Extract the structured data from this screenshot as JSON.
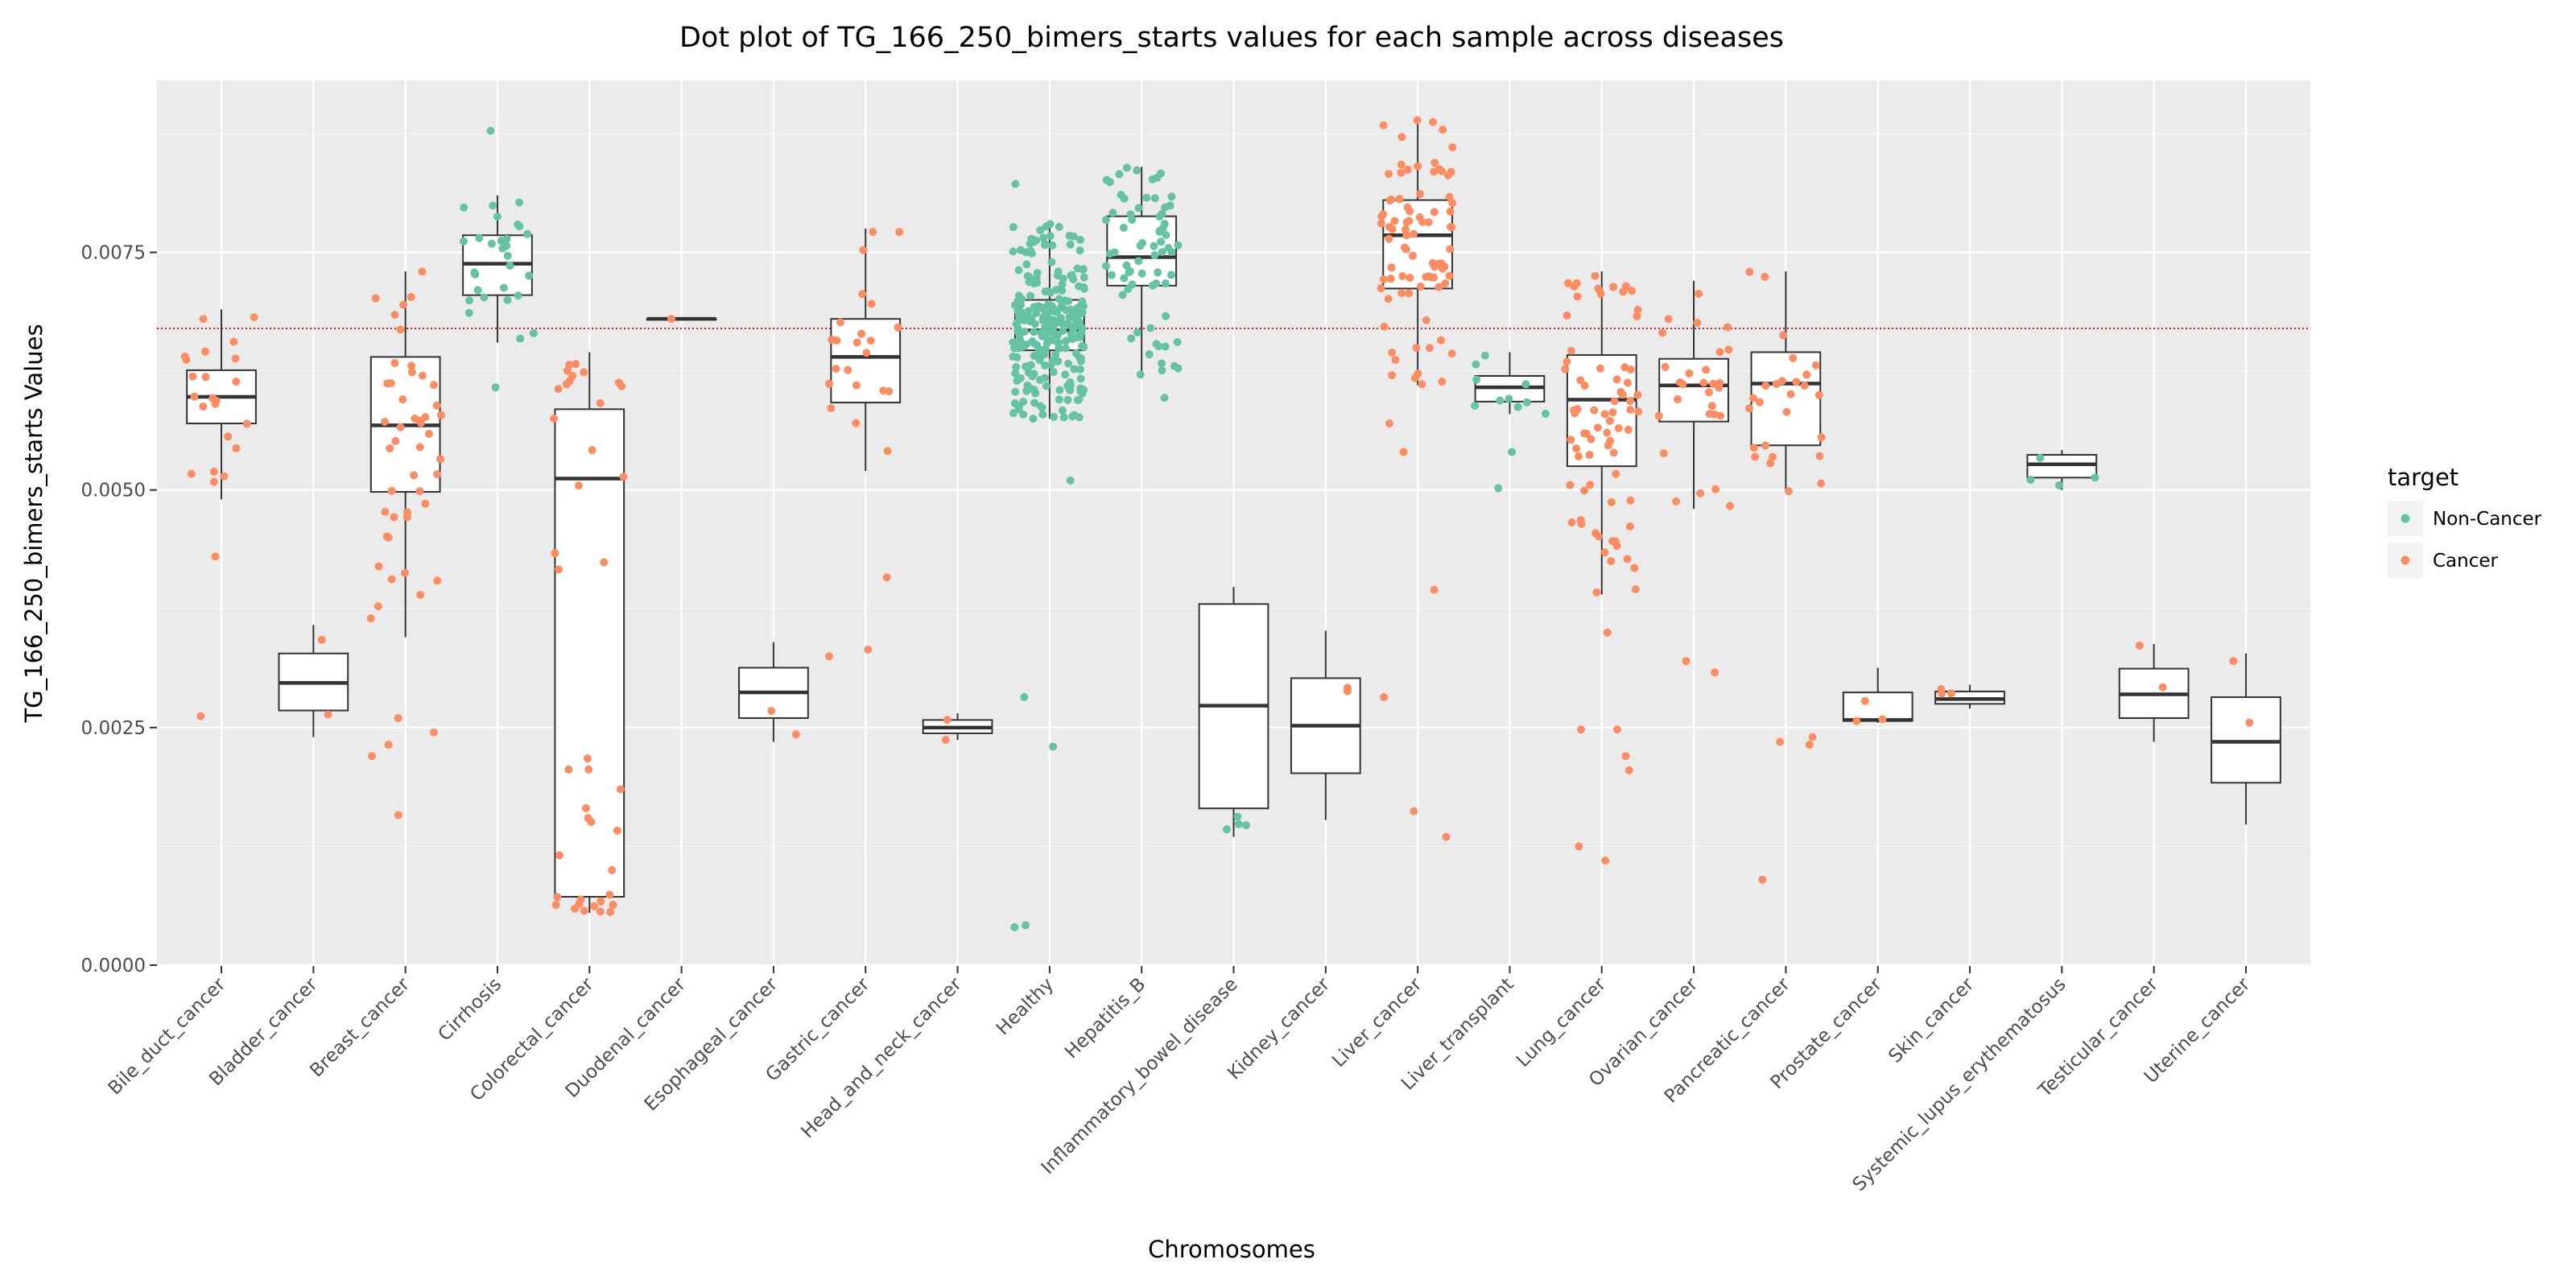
{
  "chart_data": {
    "type": "box",
    "title": "Dot plot of TG_166_250_bimers_starts values for each sample across diseases",
    "xlabel": "Chromosomes",
    "ylabel": "TG_166_250_bimers_starts Values",
    "ylim": [
      0,
      0.0093
    ],
    "yticks": [
      "0.0000",
      "0.0025",
      "0.0050",
      "0.0075"
    ],
    "ytick_values": [
      0,
      0.0025,
      0.005,
      0.0075
    ],
    "reference_line": {
      "y": 0.0067,
      "color": "#e41a1c",
      "style": "dotted"
    },
    "grid": true,
    "legend": {
      "title": "target",
      "position": "right",
      "entries": [
        {
          "label": "Non-Cancer",
          "color": "#66c2a5"
        },
        {
          "label": "Cancer",
          "color": "#fc8d62"
        }
      ]
    },
    "categories": [
      "Bile_duct_cancer",
      "Bladder_cancer",
      "Breast_cancer",
      "Cirrhosis",
      "Colorectal_cancer",
      "Duodenal_cancer",
      "Esophageal_cancer",
      "Gastric_cancer",
      "Head_and_neck_cancer",
      "Healthy",
      "Hepatitis_B",
      "Inflammatory_bowel_disease",
      "Kidney_cancer",
      "Liver_cancer",
      "Liver_transplant",
      "Lung_cancer",
      "Ovarian_cancer",
      "Pancreatic_cancer",
      "Prostate_cancer",
      "Skin_cancer",
      "Systemic_lupus_erythematosus",
      "Testicular_cancer",
      "Uterine_cancer"
    ],
    "boxes": [
      {
        "category": "Bile_duct_cancer",
        "target": "Cancer",
        "whislo": 0.0049,
        "q1": 0.0057,
        "med": 0.00598,
        "q3": 0.00626,
        "whishi": 0.0069,
        "n": 24,
        "outliers": [
          0.0043,
          0.00262
        ]
      },
      {
        "category": "Bladder_cancer",
        "target": "Cancer",
        "whislo": 0.0024,
        "q1": 0.00268,
        "med": 0.00297,
        "q3": 0.00328,
        "whishi": 0.00358,
        "n": 2,
        "outliers": []
      },
      {
        "category": "Breast_cancer",
        "target": "Cancer",
        "whislo": 0.00345,
        "q1": 0.00498,
        "med": 0.00568,
        "q3": 0.0064,
        "whishi": 0.0073,
        "n": 50,
        "outliers": [
          0.0026,
          0.00245,
          0.00232,
          0.0022,
          0.00158
        ]
      },
      {
        "category": "Cirrhosis",
        "target": "Non-Cancer",
        "whislo": 0.00655,
        "q1": 0.00705,
        "med": 0.00738,
        "q3": 0.00768,
        "whishi": 0.0081,
        "n": 30,
        "outliers": [
          0.00878,
          0.00608
        ]
      },
      {
        "category": "Colorectal_cancer",
        "target": "Cancer",
        "whislo": 0.00055,
        "q1": 0.00072,
        "med": 0.00512,
        "q3": 0.00585,
        "whishi": 0.00645,
        "n": 40,
        "outliers": []
      },
      {
        "category": "Duodenal_cancer",
        "target": "Cancer",
        "whislo": 0.0068,
        "q1": 0.0068,
        "med": 0.0068,
        "q3": 0.0068,
        "whishi": 0.0068,
        "n": 1,
        "outliers": []
      },
      {
        "category": "Esophageal_cancer",
        "target": "Cancer",
        "whislo": 0.00235,
        "q1": 0.0026,
        "med": 0.00287,
        "q3": 0.00313,
        "whishi": 0.0034,
        "n": 2,
        "outliers": []
      },
      {
        "category": "Gastric_cancer",
        "target": "Cancer",
        "whislo": 0.0052,
        "q1": 0.00592,
        "med": 0.0064,
        "q3": 0.0068,
        "whishi": 0.00775,
        "n": 25,
        "outliers": [
          0.00408,
          0.00332,
          0.00325
        ]
      },
      {
        "category": "Head_and_neck_cancer",
        "target": "Cancer",
        "whislo": 0.00237,
        "q1": 0.00244,
        "med": 0.0025,
        "q3": 0.00258,
        "whishi": 0.00265,
        "n": 2,
        "outliers": []
      },
      {
        "category": "Healthy",
        "target": "Non-Cancer",
        "whislo": 0.00575,
        "q1": 0.00647,
        "med": 0.00668,
        "q3": 0.007,
        "whishi": 0.0078,
        "n": 250,
        "outliers": [
          0.00822,
          0.0051,
          0.00282,
          0.0023,
          0.00042,
          0.0004
        ]
      },
      {
        "category": "Hepatitis_B",
        "target": "Non-Cancer",
        "whislo": 0.0062,
        "q1": 0.00715,
        "med": 0.00745,
        "q3": 0.00788,
        "whishi": 0.0084,
        "n": 70,
        "outliers": [
          0.00597
        ]
      },
      {
        "category": "Inflammatory_bowel_disease",
        "target": "Non-Cancer",
        "whislo": 0.00135,
        "q1": 0.00165,
        "med": 0.00273,
        "q3": 0.0038,
        "whishi": 0.00398,
        "n": 4,
        "outliers": []
      },
      {
        "category": "Kidney_cancer",
        "target": "Cancer",
        "whislo": 0.00153,
        "q1": 0.00202,
        "med": 0.00252,
        "q3": 0.00302,
        "whishi": 0.00352,
        "n": 2,
        "outliers": []
      },
      {
        "category": "Liver_cancer",
        "target": "Cancer",
        "whislo": 0.0061,
        "q1": 0.00712,
        "med": 0.00768,
        "q3": 0.00805,
        "whishi": 0.0089,
        "n": 90,
        "outliers": [
          0.0057,
          0.0054,
          0.00395,
          0.00282,
          0.00162,
          0.00135
        ]
      },
      {
        "category": "Liver_transplant",
        "target": "Non-Cancer",
        "whislo": 0.0058,
        "q1": 0.00593,
        "med": 0.00608,
        "q3": 0.0062,
        "whishi": 0.00645,
        "n": 12,
        "outliers": [
          0.0054,
          0.00502
        ]
      },
      {
        "category": "Lung_cancer",
        "target": "Cancer",
        "whislo": 0.0039,
        "q1": 0.00525,
        "med": 0.00595,
        "q3": 0.00642,
        "whishi": 0.0073,
        "n": 80,
        "outliers": [
          0.0035,
          0.00248,
          0.00248,
          0.0022,
          0.00205,
          0.00125,
          0.0011
        ]
      },
      {
        "category": "Ovarian_cancer",
        "target": "Cancer",
        "whislo": 0.0048,
        "q1": 0.00572,
        "med": 0.0061,
        "q3": 0.00638,
        "whishi": 0.0072,
        "n": 30,
        "outliers": [
          0.0032,
          0.00308
        ]
      },
      {
        "category": "Pancreatic_cancer",
        "target": "Cancer",
        "whislo": 0.00498,
        "q1": 0.00547,
        "med": 0.00612,
        "q3": 0.00645,
        "whishi": 0.0073,
        "n": 30,
        "outliers": [
          0.0024,
          0.00235,
          0.00232,
          0.0009
        ]
      },
      {
        "category": "Prostate_cancer",
        "target": "Cancer",
        "whislo": 0.00255,
        "q1": 0.00257,
        "med": 0.00258,
        "q3": 0.00287,
        "whishi": 0.00313,
        "n": 3,
        "outliers": []
      },
      {
        "category": "Skin_cancer",
        "target": "Cancer",
        "whislo": 0.0027,
        "q1": 0.00275,
        "med": 0.0028,
        "q3": 0.00288,
        "whishi": 0.00295,
        "n": 3,
        "outliers": []
      },
      {
        "category": "Systemic_lupus_erythematosus",
        "target": "Non-Cancer",
        "whislo": 0.005,
        "q1": 0.00513,
        "med": 0.00527,
        "q3": 0.00537,
        "whishi": 0.00542,
        "n": 4,
        "outliers": []
      },
      {
        "category": "Testicular_cancer",
        "target": "Cancer",
        "whislo": 0.00235,
        "q1": 0.0026,
        "med": 0.00285,
        "q3": 0.00312,
        "whishi": 0.00338,
        "n": 2,
        "outliers": []
      },
      {
        "category": "Uterine_cancer",
        "target": "Cancer",
        "whislo": 0.00148,
        "q1": 0.00192,
        "med": 0.00235,
        "q3": 0.00282,
        "whishi": 0.00328,
        "n": 2,
        "outliers": []
      }
    ]
  }
}
